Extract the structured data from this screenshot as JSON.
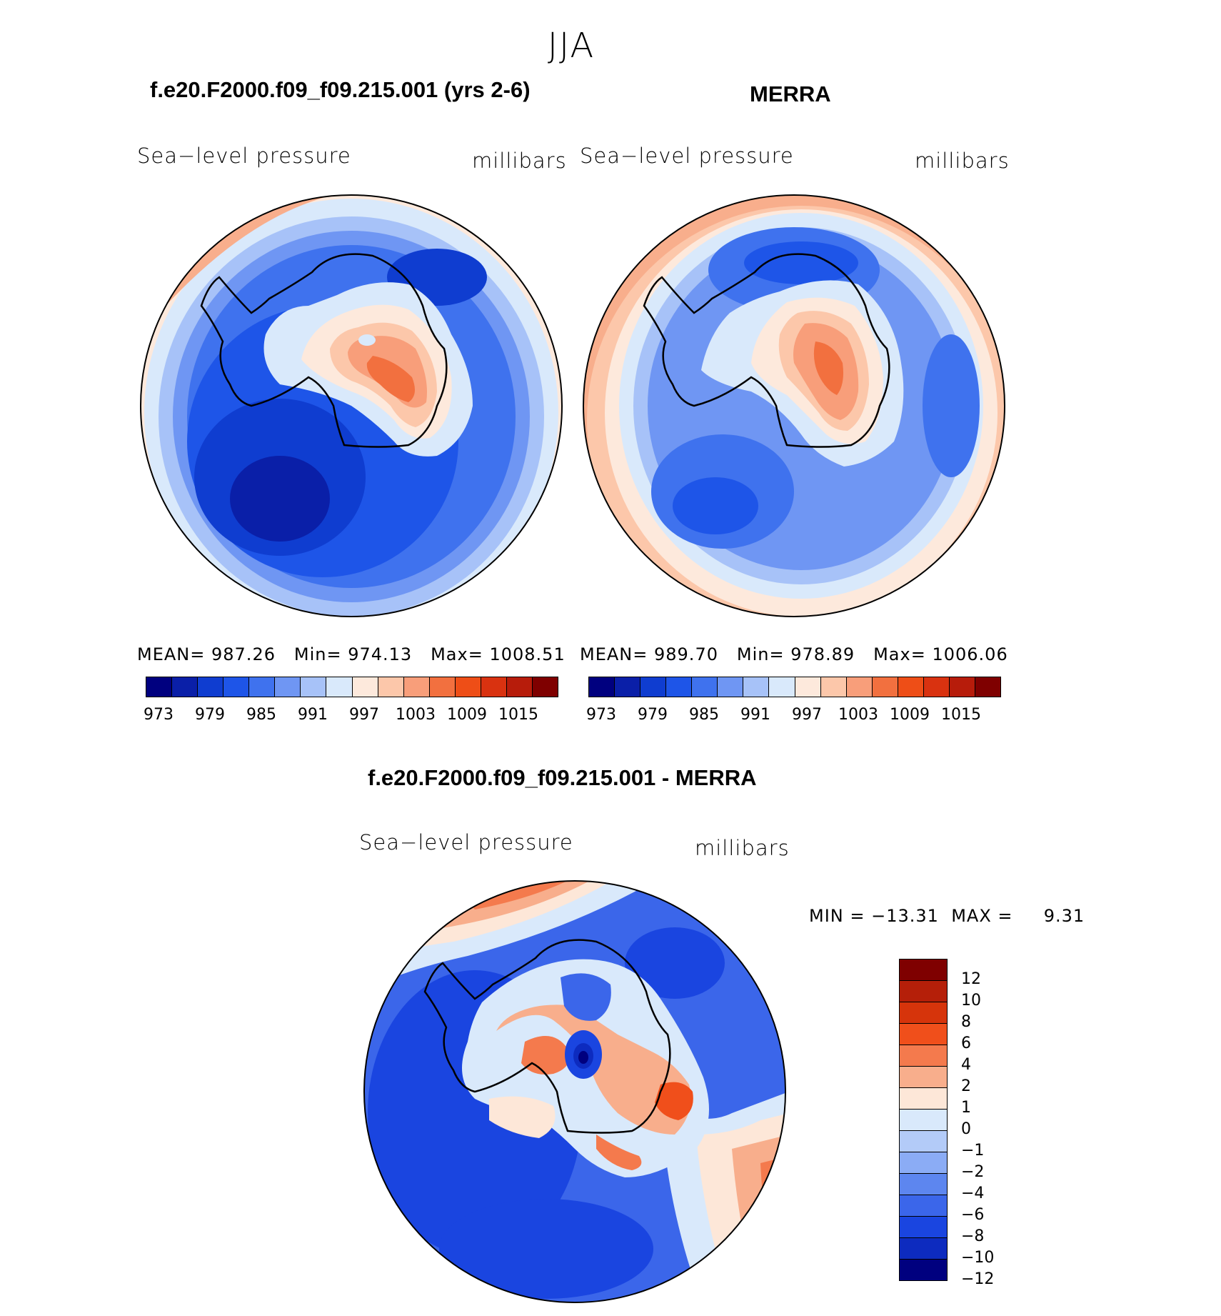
{
  "figure": {
    "season": "JJA",
    "variable": "Sea−level pressure",
    "units": "millibars"
  },
  "panels": [
    {
      "title": "f.e20.F2000.f09_f09.215.001 (yrs 2-6)",
      "variable": "Sea−level pressure",
      "units": "millibars",
      "stats": {
        "mean_label": "MEAN=",
        "mean": "987.26",
        "min_label": "Min=",
        "min": "974.13",
        "max_label": "Max=",
        "max": "1008.51"
      }
    },
    {
      "title": "MERRA",
      "variable": "Sea−level pressure",
      "units": "millibars",
      "stats": {
        "mean_label": "MEAN=",
        "mean": "989.70",
        "min_label": "Min=",
        "min": "978.89",
        "max_label": "Max=",
        "max": "1006.06"
      }
    },
    {
      "title": "f.e20.F2000.f09_f09.215.001 - MERRA",
      "variable": "Sea−level pressure",
      "units": "millibars",
      "stats": {
        "min_label": "MIN =",
        "min": "−13.31",
        "max_label": "MAX =",
        "max": "9.31"
      }
    }
  ],
  "colorbars": {
    "absolute": {
      "colors": [
        "#00007f",
        "#0a1fa8",
        "#0f3dd0",
        "#1e55e8",
        "#3f72ee",
        "#6f96f3",
        "#a7c2f8",
        "#d9e9fb",
        "#fde9dc",
        "#fcc7aa",
        "#f89e7a",
        "#f2703f",
        "#ee4e17",
        "#d93210",
        "#b71c0b",
        "#7f0000"
      ],
      "labels": [
        "973",
        "979",
        "985",
        "991",
        "997",
        "1003",
        "1009",
        "1015"
      ]
    },
    "difference": {
      "colors": [
        "#7f0000",
        "#b51f09",
        "#d6340b",
        "#f04f1b",
        "#f47a4d",
        "#f8ae8c",
        "#fde7d8",
        "#d9e9fb",
        "#b3cbf8",
        "#8bacf5",
        "#5d86ef",
        "#3b66ea",
        "#1a45e0",
        "#0d2bbf",
        "#00007f"
      ],
      "labels": [
        "12",
        "10",
        "8",
        "6",
        "4",
        "2",
        "1",
        "0",
        "−1",
        "−2",
        "−4",
        "−6",
        "−8",
        "−10",
        "−12"
      ]
    }
  }
}
